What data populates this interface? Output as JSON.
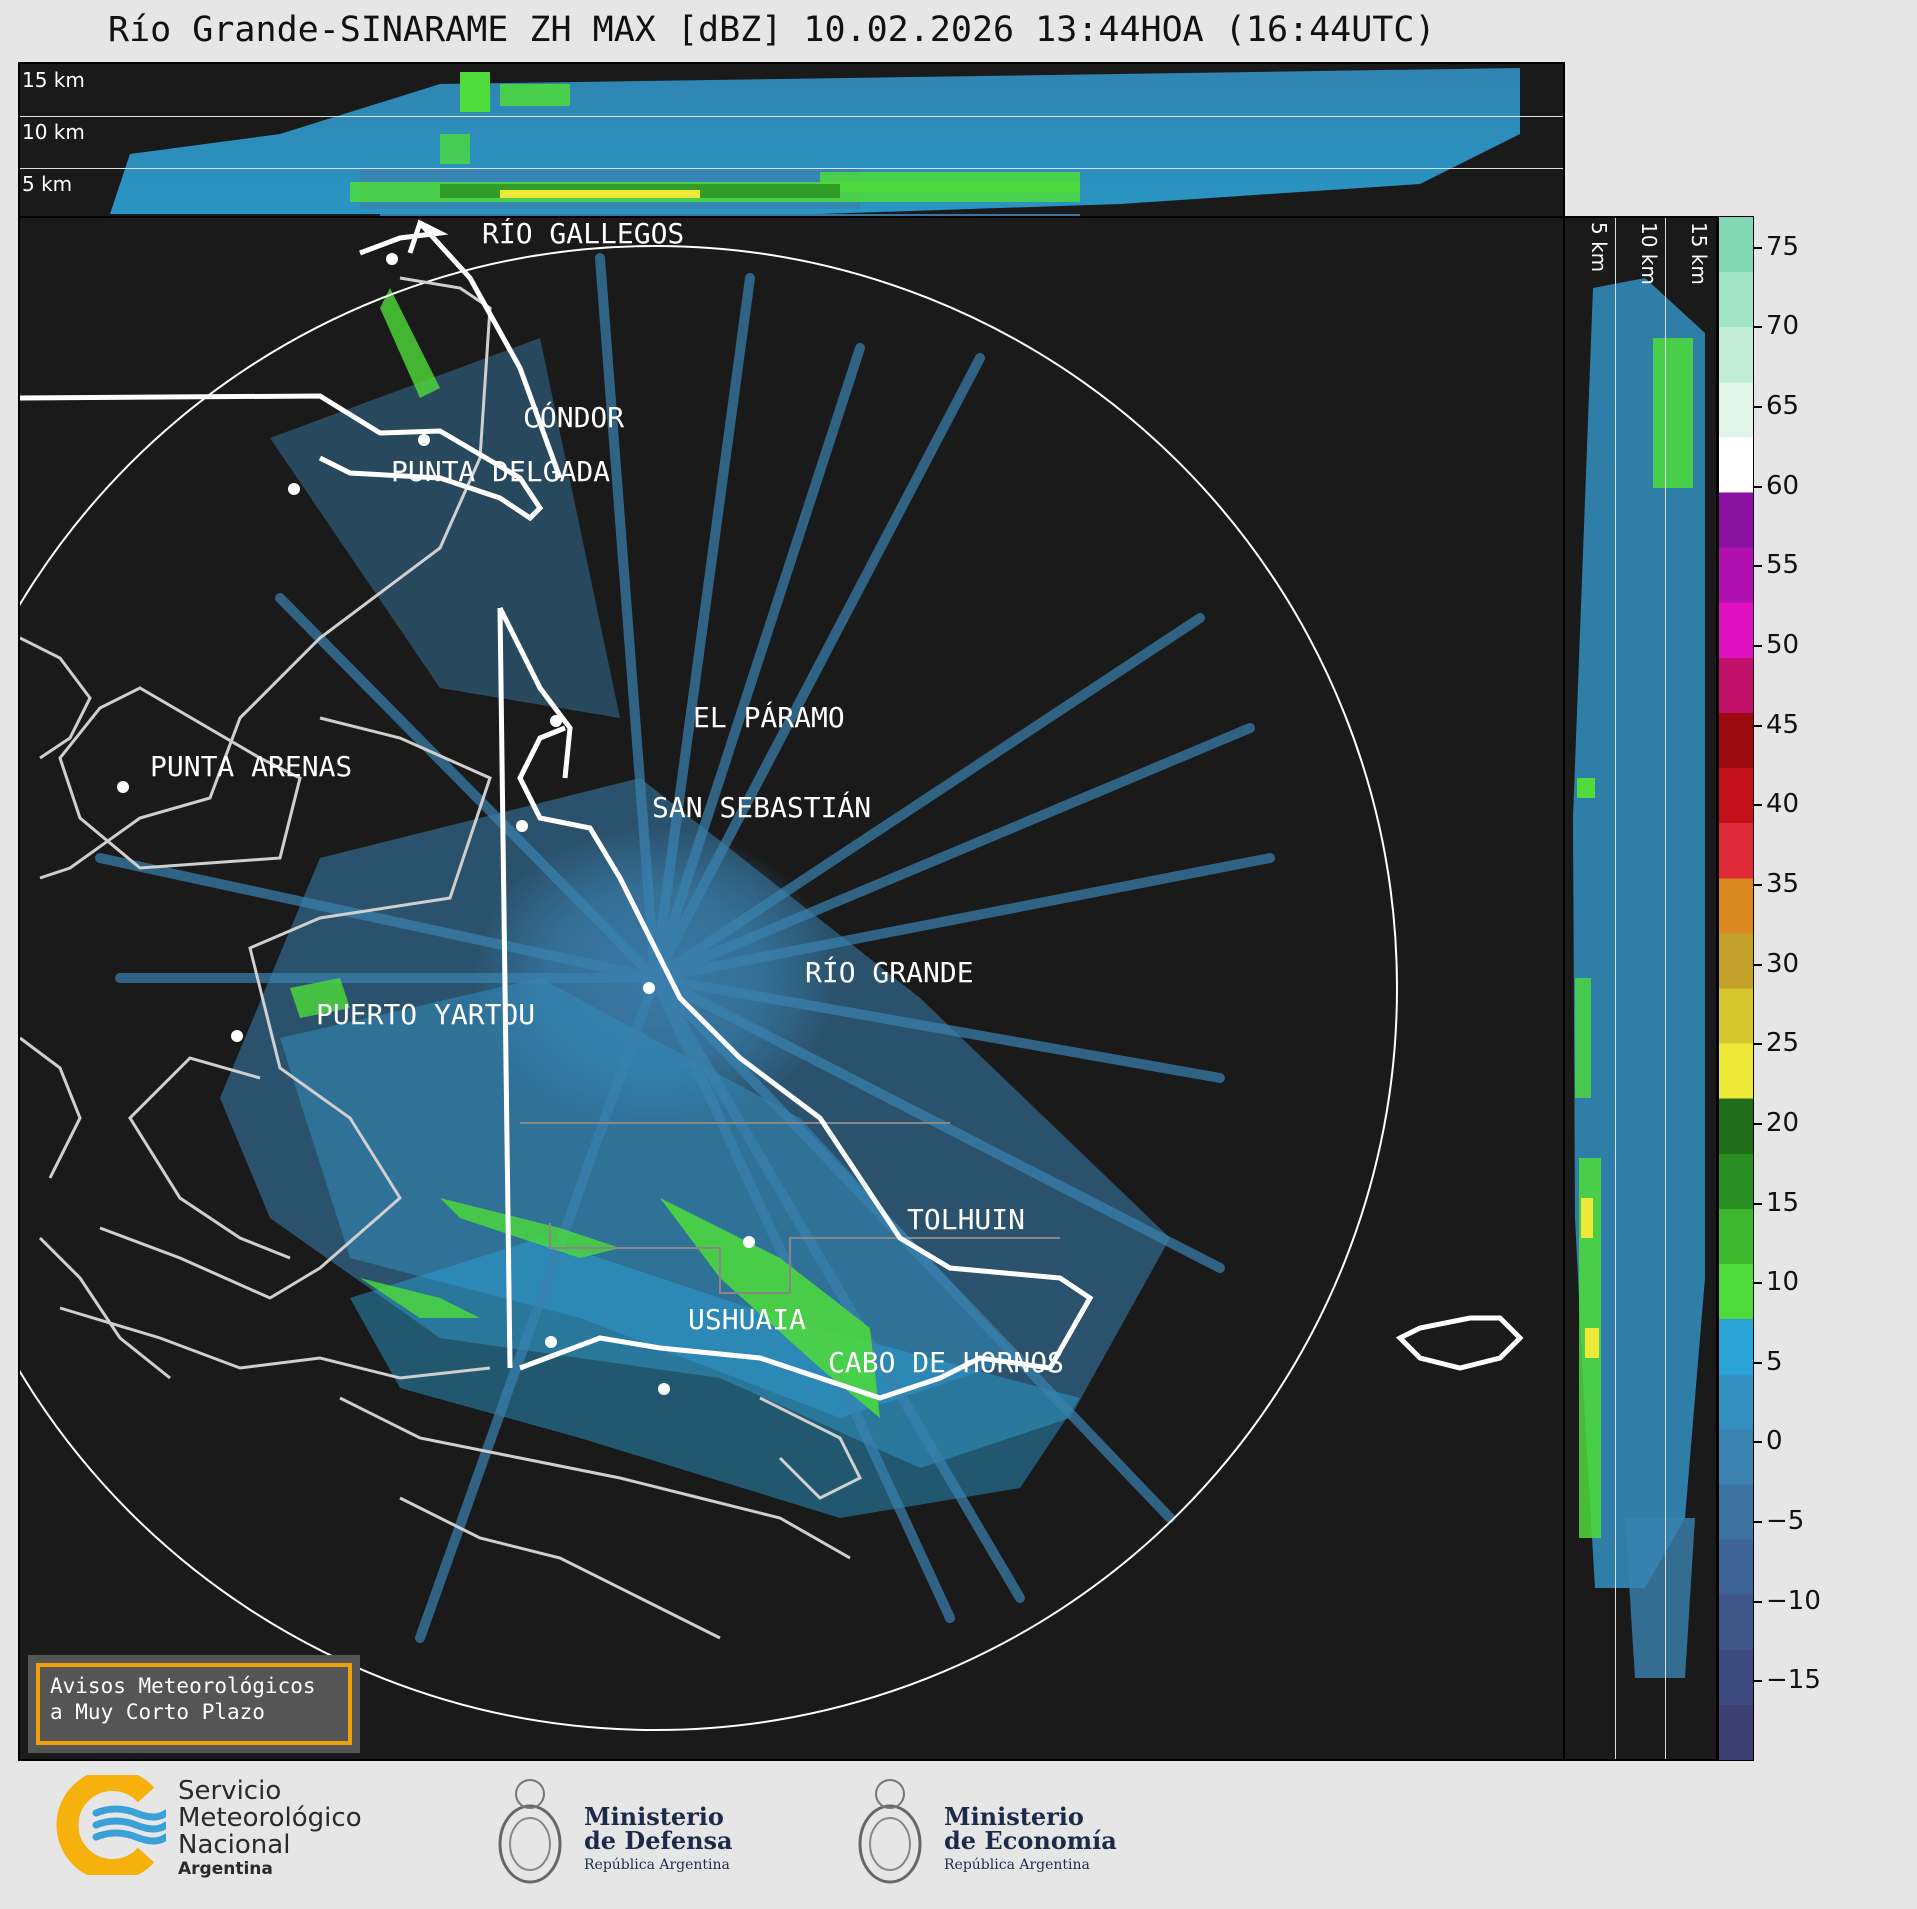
{
  "title": "Río Grande-SINARAME ZH MAX [dBZ] 10.02.2026 13:44HOA (16:44UTC)",
  "top_panel": {
    "labels": [
      "15 km",
      "10 km",
      "5 km"
    ]
  },
  "side_panel": {
    "labels": [
      "5 km",
      "10 km",
      "15 km"
    ]
  },
  "cities": [
    {
      "name": "RÍO GALLEGOS",
      "key": "rio_gallegos"
    },
    {
      "name": "CÓNDOR",
      "key": "condor"
    },
    {
      "name": "PUNTA DELGADA",
      "key": "punta_delgada"
    },
    {
      "name": "EL PÁRAMO",
      "key": "el_paramo"
    },
    {
      "name": "PUNTA ARENAS",
      "key": "punta_arenas"
    },
    {
      "name": "SAN SEBASTIÁN",
      "key": "san_sebastian"
    },
    {
      "name": "RÍO GRANDE",
      "key": "rio_grande"
    },
    {
      "name": "PUERTO YARTOU",
      "key": "puerto_yartou"
    },
    {
      "name": "TOLHUIN",
      "key": "tolhuin"
    },
    {
      "name": "USHUAIA",
      "key": "ushuaia"
    },
    {
      "name": "CABO DE HORNOS",
      "key": "cabo_de_hornos"
    }
  ],
  "colorbar": {
    "unit": "dBZ",
    "ticks": [
      "75",
      "70",
      "65",
      "60",
      "55",
      "50",
      "45",
      "40",
      "35",
      "30",
      "25",
      "20",
      "15",
      "10",
      "5",
      "0",
      "−5",
      "−10",
      "−15"
    ],
    "colors": [
      "#3b3f72",
      "#3d4a7e",
      "#3f568a",
      "#3e6495",
      "#3b72a0",
      "#3a82b0",
      "#3390c2",
      "#2aa3d6",
      "#4ddc3a",
      "#3bb82e",
      "#2a8f22",
      "#1f6e1a",
      "#f0e838",
      "#d6c82e",
      "#c4a12a",
      "#d88a1f",
      "#e02a3a",
      "#c4101a",
      "#9c0a10",
      "#c0106a",
      "#e010c0",
      "#b010b0",
      "#8a10a0",
      "#ffffff",
      "#e0f5ea",
      "#c0ecd8",
      "#a0e3c6",
      "#80d9b4"
    ],
    "range": [
      -20,
      77
    ]
  },
  "warning_box": {
    "line1": "Avisos Meteorológicos",
    "line2": "a Muy Corto Plazo"
  },
  "logos": {
    "smn": {
      "line1": "Servicio",
      "line2": "Meteorológico",
      "line3": "Nacional",
      "line4": "Argentina"
    },
    "defensa": {
      "line1": "Ministerio",
      "line2": "de Defensa",
      "line3": "República Argentina"
    },
    "economia": {
      "line1": "Ministerio",
      "line2": "de Economía",
      "line3": "República Argentina"
    }
  }
}
